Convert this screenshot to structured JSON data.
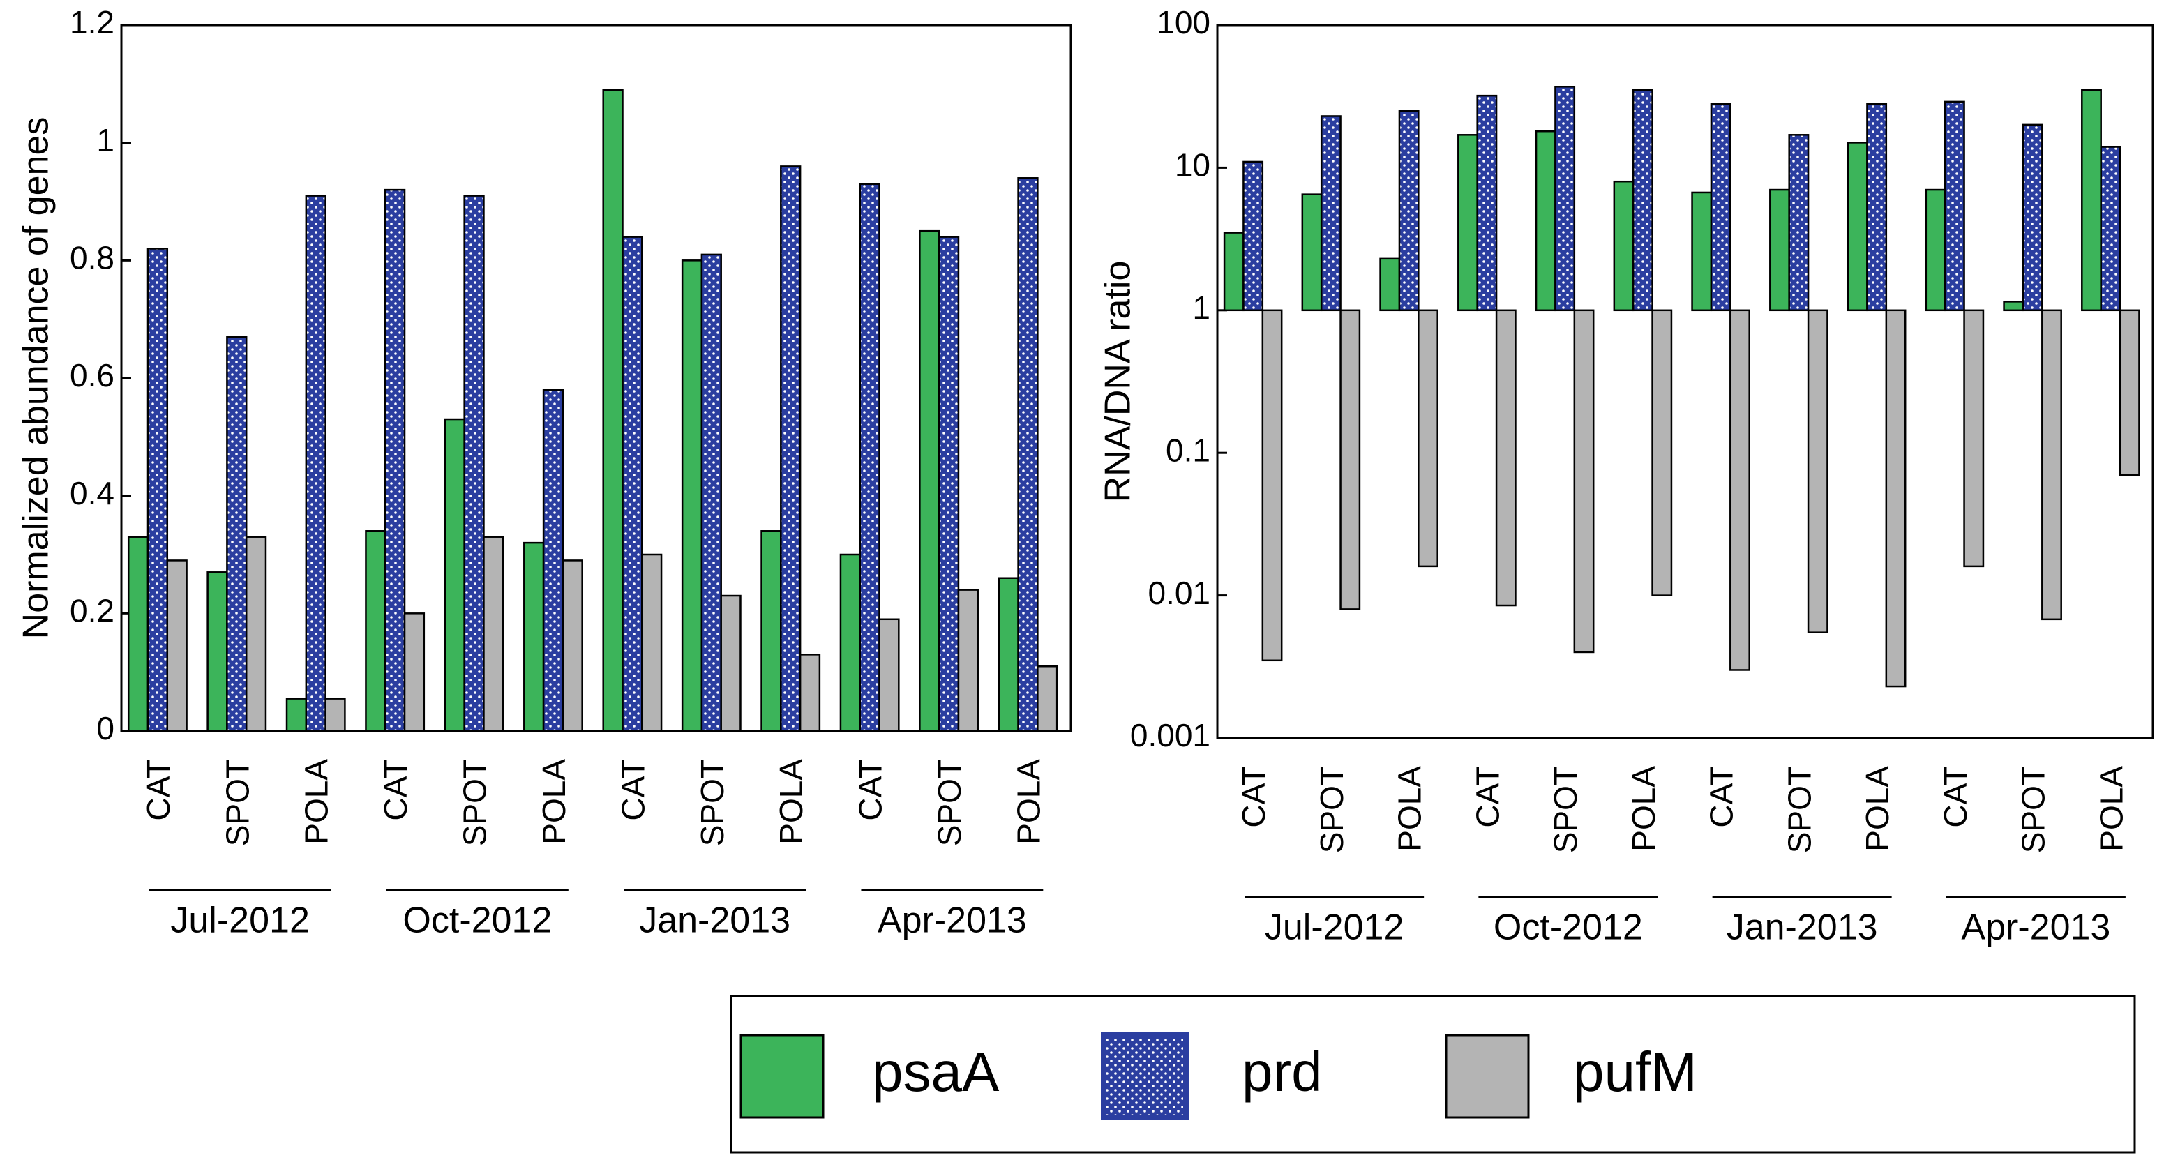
{
  "chart_data": [
    {
      "type": "bar",
      "ylabel": "Normalized abundance of genes",
      "categories": [
        "CAT",
        "SPOT",
        "POLA",
        "CAT",
        "SPOT",
        "POLA",
        "CAT",
        "SPOT",
        "POLA",
        "CAT",
        "SPOT",
        "POLA"
      ],
      "groups": [
        "Jul-2012",
        "Oct-2012",
        "Jan-2013",
        "Apr-2013"
      ],
      "ylim": [
        0,
        1.2
      ],
      "yticks": [
        0,
        0.2,
        0.4,
        0.6,
        0.8,
        1,
        1.2
      ],
      "log": false,
      "series": [
        {
          "name": "psaA",
          "color": "#3cb45a",
          "values": [
            0.33,
            0.27,
            0.055,
            0.34,
            0.53,
            0.32,
            1.09,
            0.8,
            0.34,
            0.3,
            0.85,
            0.26
          ]
        },
        {
          "name": "prd",
          "color": "#2b3ea0",
          "pattern": "dots",
          "values": [
            0.82,
            0.67,
            0.91,
            0.92,
            0.91,
            0.58,
            0.84,
            0.81,
            0.96,
            0.93,
            0.84,
            0.94
          ]
        },
        {
          "name": "pufM",
          "color": "#b4b4b4",
          "values": [
            0.29,
            0.33,
            0.055,
            0.2,
            0.33,
            0.29,
            0.3,
            0.23,
            0.13,
            0.19,
            0.24,
            0.11
          ]
        }
      ]
    },
    {
      "type": "bar",
      "ylabel": "RNA/DNA ratio",
      "categories": [
        "CAT",
        "SPOT",
        "POLA",
        "CAT",
        "SPOT",
        "POLA",
        "CAT",
        "SPOT",
        "POLA",
        "CAT",
        "SPOT",
        "POLA"
      ],
      "groups": [
        "Jul-2012",
        "Oct-2012",
        "Jan-2013",
        "Apr-2013"
      ],
      "ylim": [
        0.001,
        100
      ],
      "yticks": [
        0.001,
        0.01,
        0.1,
        1,
        10,
        100
      ],
      "log": true,
      "series": [
        {
          "color": "#3cb45a",
          "values": [
            3.5,
            6.5,
            2.3,
            17,
            18,
            8,
            6.7,
            7,
            15,
            7,
            1.15,
            35
          ]
        },
        {
          "color": "#2b3ea0",
          "pattern": "dots",
          "values": [
            11,
            23,
            25,
            32,
            37,
            35,
            28,
            17,
            28,
            29,
            20,
            14
          ]
        },
        {
          "color": "#b4b4b4",
          "values": [
            0.0035,
            0.008,
            0.016,
            0.0085,
            0.004,
            0.01,
            0.003,
            0.0055,
            0.0023,
            0.016,
            0.0068,
            0.07
          ]
        }
      ]
    }
  ]
}
